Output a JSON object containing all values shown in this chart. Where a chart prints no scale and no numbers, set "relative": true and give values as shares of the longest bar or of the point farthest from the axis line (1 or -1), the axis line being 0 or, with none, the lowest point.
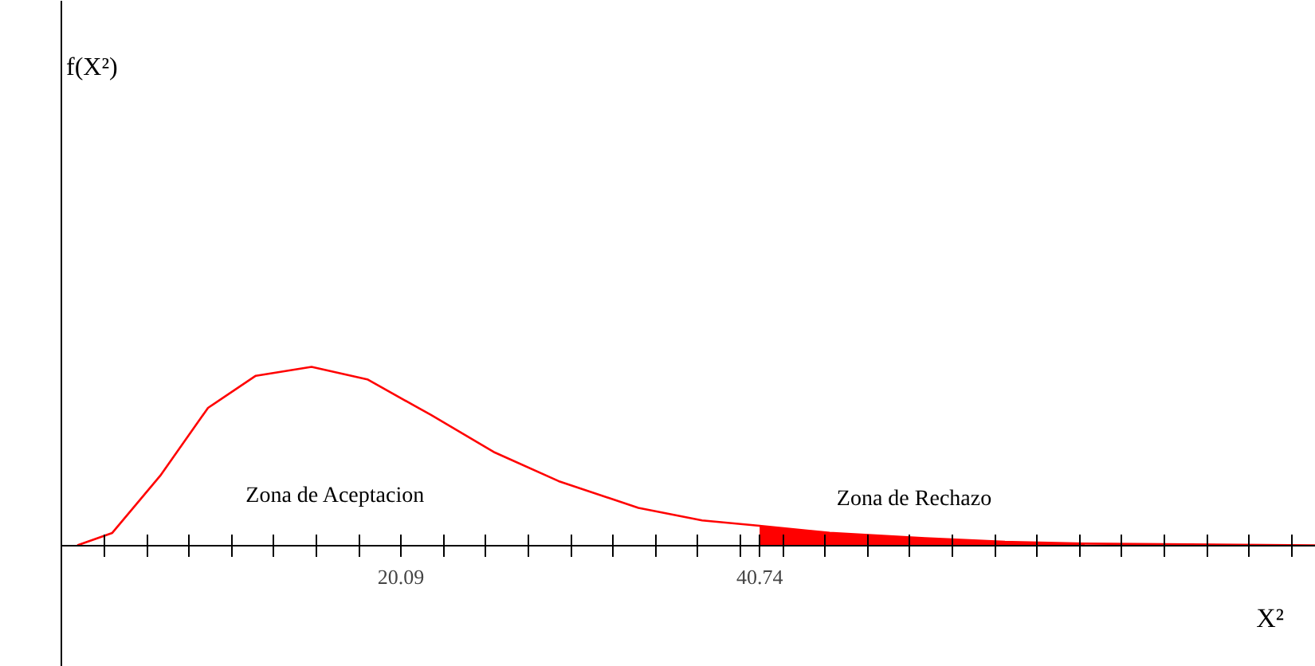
{
  "chart_data": {
    "type": "line",
    "relative": true,
    "xlabel": "X²",
    "xlim": [
      0.55,
      72.75
    ],
    "xticks": [
      {
        "value": 3.03,
        "label": null
      },
      {
        "value": 5.47,
        "label": null
      },
      {
        "value": 7.91,
        "label": null
      },
      {
        "value": 10.35,
        "label": null
      },
      {
        "value": 12.79,
        "label": null
      },
      {
        "value": 15.23,
        "label": null
      },
      {
        "value": 17.67,
        "label": null
      },
      20.09,
      {
        "value": 22.55,
        "label": null
      },
      {
        "value": 24.99,
        "label": null
      },
      {
        "value": 27.43,
        "label": null
      },
      {
        "value": 29.87,
        "label": null
      },
      {
        "value": 32.31,
        "label": null
      },
      {
        "value": 34.75,
        "label": null
      },
      {
        "value": 37.19,
        "label": null
      },
      {
        "value": 39.63,
        "label": null
      },
      40.74,
      {
        "value": 42.07,
        "label": null
      },
      {
        "value": 44.51,
        "label": null
      },
      {
        "value": 46.95,
        "label": null
      },
      {
        "value": 49.39,
        "label": null
      },
      {
        "value": 51.83,
        "label": null
      },
      {
        "value": 54.27,
        "label": null
      },
      {
        "value": 56.71,
        "label": null
      },
      {
        "value": 59.15,
        "label": null
      },
      {
        "value": 61.59,
        "label": null
      },
      {
        "value": 64.03,
        "label": null
      },
      {
        "value": 66.47,
        "label": null
      },
      {
        "value": 68.91,
        "label": null
      },
      {
        "value": 71.35,
        "label": null
      }
    ],
    "series": [
      {
        "color": "#ff0000",
        "x": [
          1.47,
          3.48,
          6.24,
          8.99,
          11.74,
          14.95,
          18.16,
          21.83,
          25.5,
          29.17,
          33.76,
          37.43,
          40.74,
          44.77,
          50.27,
          54.86,
          59.45,
          72.75
        ],
        "values": [
          0,
          0.07,
          0.39,
          0.77,
          0.95,
          1,
          0.93,
          0.73,
          0.52,
          0.36,
          0.21,
          0.14,
          0.11,
          0.07,
          0.04,
          0.02,
          0.01,
          0
        ]
      },
      {
        "type": "area",
        "color": "#ff0000",
        "x": [
          40.74,
          44.77,
          50.27,
          54.86,
          59.45
        ],
        "values": [
          0.11,
          0.07,
          0.04,
          0.02,
          0.01
        ]
      }
    ],
    "annotations": [
      "f(X²)",
      "Zona de Aceptacion",
      "Zona de Rechazo"
    ]
  }
}
